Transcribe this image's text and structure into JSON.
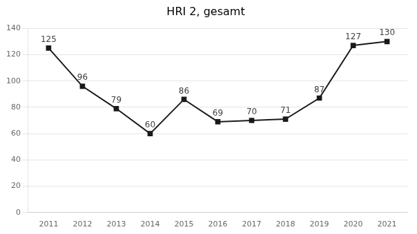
{
  "chart_data": {
    "type": "line",
    "title": "HRI 2, gesamt",
    "x": [
      2011,
      2012,
      2013,
      2014,
      2015,
      2016,
      2017,
      2018,
      2019,
      2020,
      2021
    ],
    "values": [
      125,
      96,
      79,
      60,
      86,
      69,
      70,
      71,
      87,
      127,
      130
    ],
    "xlim": [
      2010.4,
      2021.6
    ],
    "xticks": [
      2011,
      2012,
      2013,
      2014,
      2015,
      2016,
      2017,
      2018,
      2019,
      2020,
      2021
    ],
    "ylim": [
      0,
      140
    ],
    "yticks": [
      0,
      20,
      40,
      60,
      80,
      100,
      120,
      140
    ],
    "color": "#1a1a1a",
    "marker": "square",
    "data_labels": true,
    "grid": "y"
  }
}
